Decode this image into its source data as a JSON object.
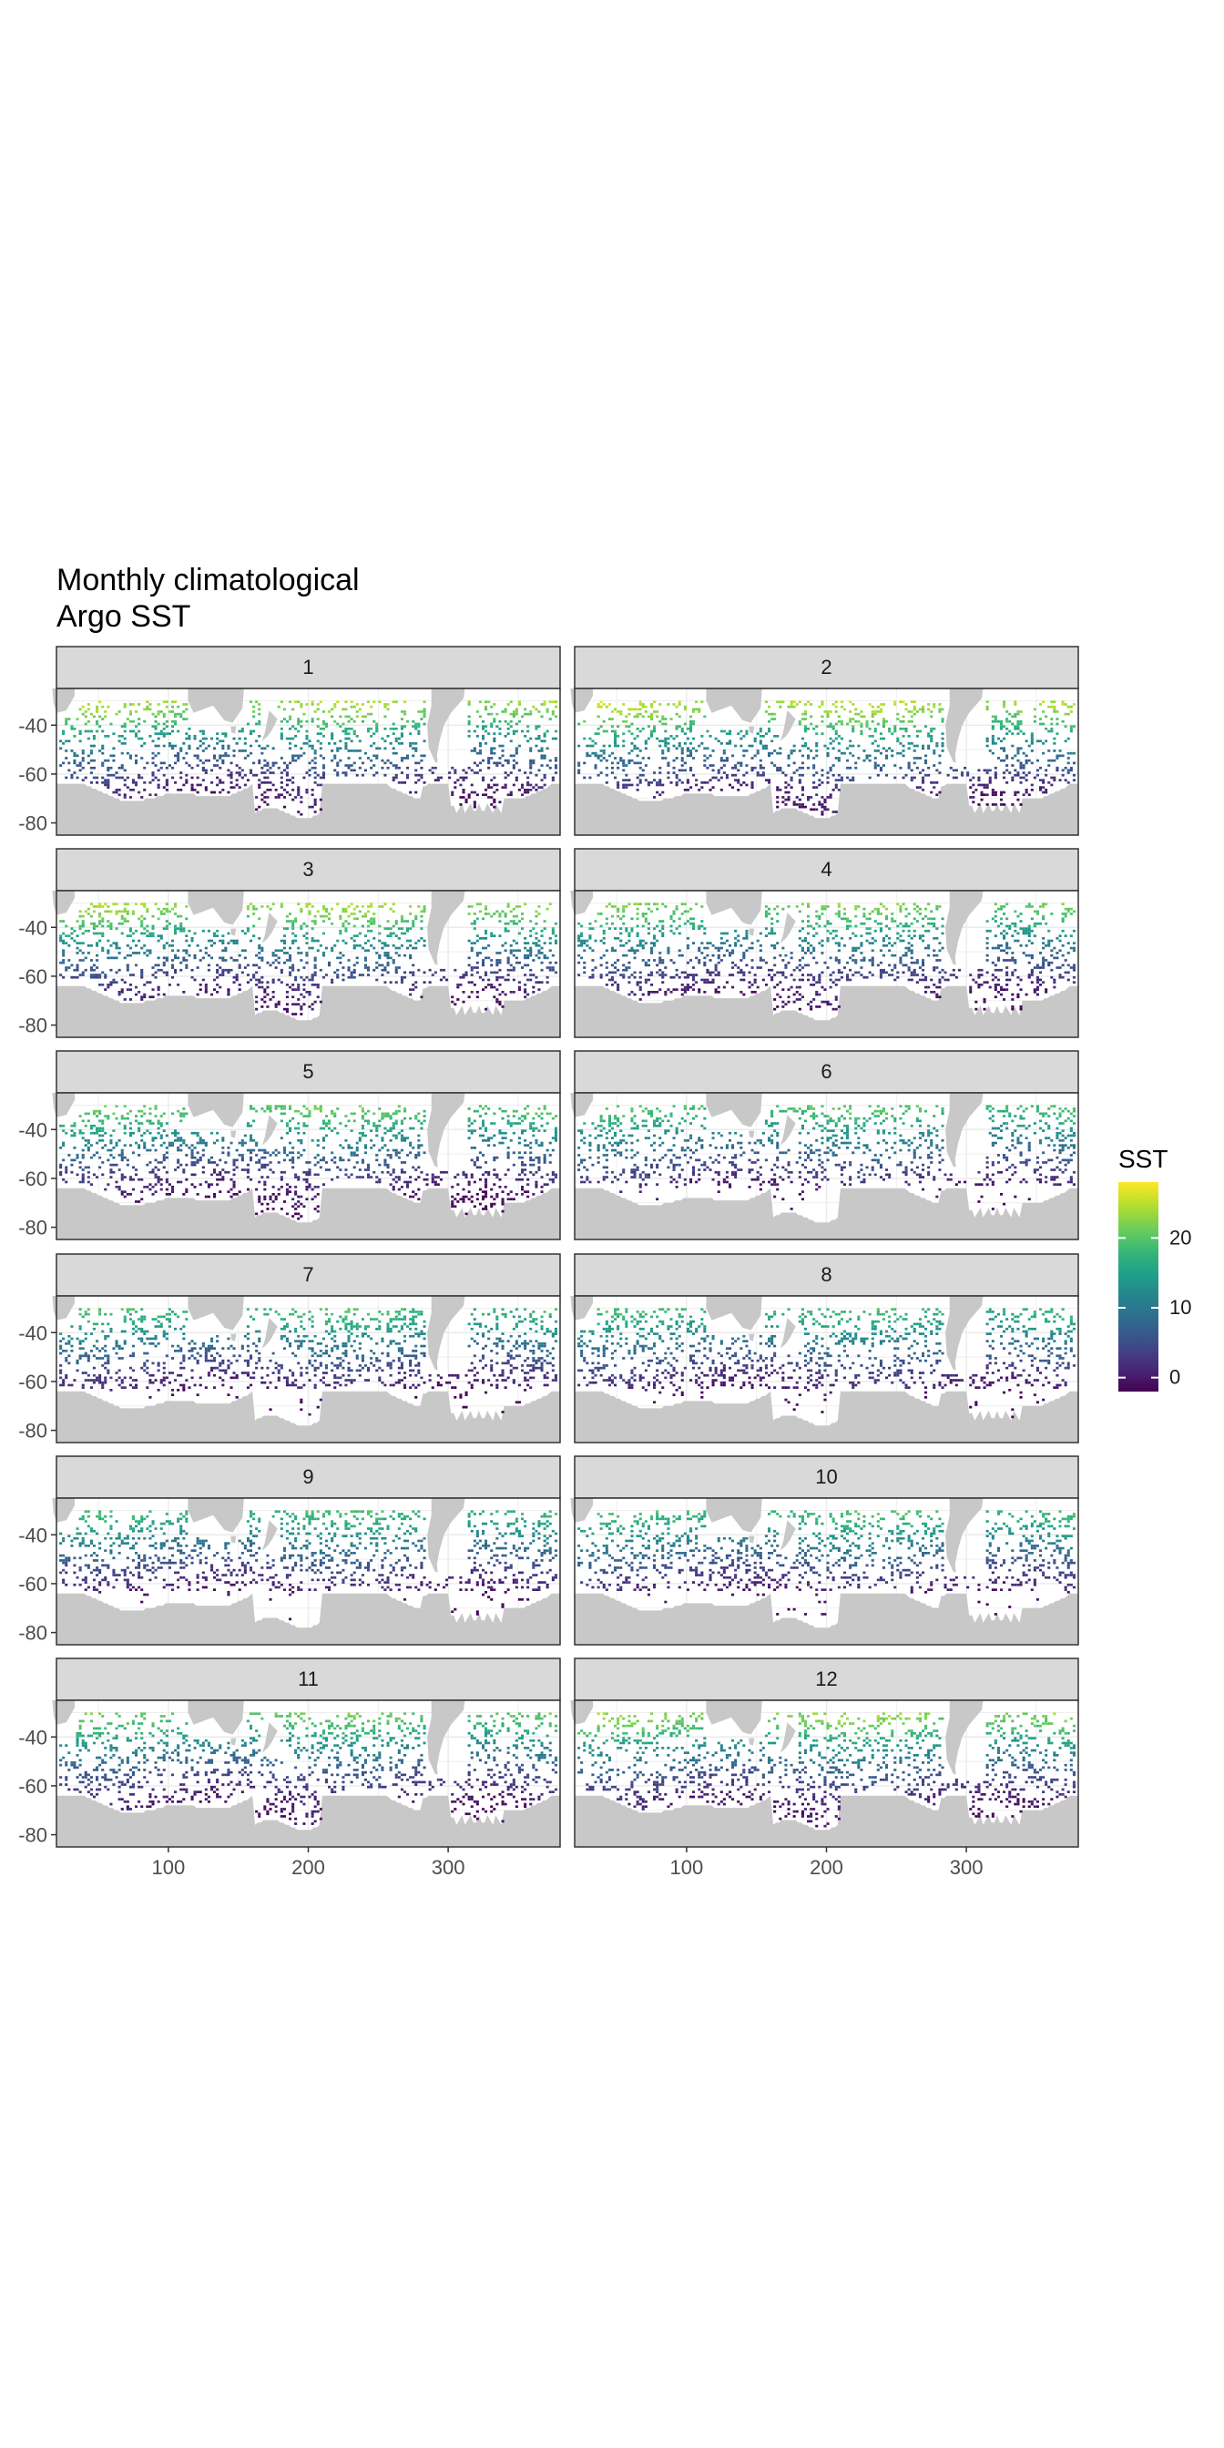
{
  "chart_data": {
    "type": "heatmap",
    "title": "Monthly climatological\nArgo SST",
    "xlabel": "",
    "ylabel": "",
    "xlim": [
      20,
      380
    ],
    "ylim": [
      -85,
      -25
    ],
    "x_ticks": [
      "100",
      "200",
      "300"
    ],
    "y_ticks": [
      "-40",
      "-60",
      "-80"
    ],
    "facets": [
      "1",
      "2",
      "3",
      "4",
      "5",
      "6",
      "7",
      "8",
      "9",
      "10",
      "11",
      "12"
    ],
    "facet_layout": "2 columns x 6 rows",
    "legend": {
      "title": "SST",
      "ticks": [
        "0",
        "10",
        "20"
      ],
      "range": [
        -2,
        28
      ],
      "placement": "right",
      "palette": "viridis"
    },
    "grid": true,
    "land_color": "#c8c8c8",
    "strip_color": "#d9d9d9",
    "zonal_sst_by_month": [
      {
        "month": 1,
        "lat": [
          -35,
          -45,
          -55,
          -65,
          -75
        ],
        "sst": [
          21,
          13,
          6,
          1,
          -1
        ]
      },
      {
        "month": 2,
        "lat": [
          -35,
          -45,
          -55,
          -65,
          -75
        ],
        "sst": [
          22,
          14,
          7,
          1.5,
          -1
        ]
      },
      {
        "month": 3,
        "lat": [
          -35,
          -45,
          -55,
          -65,
          -75
        ],
        "sst": [
          21,
          13,
          6,
          1,
          -1.5
        ]
      },
      {
        "month": 4,
        "lat": [
          -35,
          -45,
          -55,
          -65,
          -75
        ],
        "sst": [
          19,
          12,
          5,
          0.5,
          -1.5
        ]
      },
      {
        "month": 5,
        "lat": [
          -35,
          -45,
          -55,
          -65,
          -75
        ],
        "sst": [
          18,
          11,
          4,
          0,
          -1.7
        ]
      },
      {
        "month": 6,
        "lat": [
          -35,
          -45,
          -55,
          -65,
          -75
        ],
        "sst": [
          17,
          10,
          4,
          -0.5,
          -1.8
        ]
      },
      {
        "month": 7,
        "lat": [
          -35,
          -45,
          -55,
          -65,
          -75
        ],
        "sst": [
          16,
          9,
          3,
          -1,
          -1.8
        ]
      },
      {
        "month": 8,
        "lat": [
          -35,
          -45,
          -55,
          -65,
          -75
        ],
        "sst": [
          15.5,
          9,
          3,
          -1,
          -1.8
        ]
      },
      {
        "month": 9,
        "lat": [
          -35,
          -45,
          -55,
          -65,
          -75
        ],
        "sst": [
          15.5,
          9,
          3,
          -1,
          -1.8
        ]
      },
      {
        "month": 10,
        "lat": [
          -35,
          -45,
          -55,
          -65,
          -75
        ],
        "sst": [
          16,
          9.5,
          3.5,
          -0.5,
          -1.8
        ]
      },
      {
        "month": 11,
        "lat": [
          -35,
          -45,
          -55,
          -65,
          -75
        ],
        "sst": [
          18,
          11,
          4.5,
          0,
          -1.5
        ]
      },
      {
        "month": 12,
        "lat": [
          -35,
          -45,
          -55,
          -65,
          -75
        ],
        "sst": [
          20,
          12,
          5.5,
          0.5,
          -1.2
        ]
      }
    ]
  }
}
